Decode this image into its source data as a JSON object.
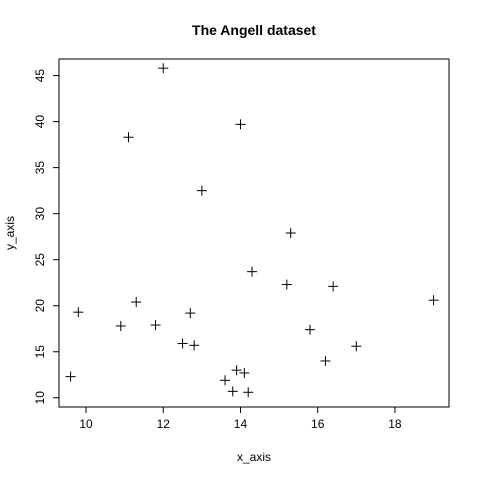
{
  "chart_data": {
    "type": "scatter",
    "title": "The Angell dataset",
    "xlabel": "x_axis",
    "ylabel": "y_axis",
    "xlim": [
      9.3,
      19.4
    ],
    "ylim": [
      9.0,
      46.8
    ],
    "xticks": [
      10,
      12,
      14,
      16,
      18
    ],
    "yticks": [
      10,
      15,
      20,
      25,
      30,
      35,
      40,
      45
    ],
    "point_marker": "plus",
    "grid": false,
    "points": [
      {
        "x": 9.6,
        "y": 12.3
      },
      {
        "x": 9.8,
        "y": 19.3
      },
      {
        "x": 10.9,
        "y": 17.8
      },
      {
        "x": 11.1,
        "y": 38.3
      },
      {
        "x": 11.3,
        "y": 20.4
      },
      {
        "x": 11.8,
        "y": 17.9
      },
      {
        "x": 12.0,
        "y": 45.8
      },
      {
        "x": 12.5,
        "y": 15.9
      },
      {
        "x": 12.7,
        "y": 19.2
      },
      {
        "x": 12.8,
        "y": 15.7
      },
      {
        "x": 13.0,
        "y": 32.5
      },
      {
        "x": 13.6,
        "y": 11.9
      },
      {
        "x": 13.8,
        "y": 10.7
      },
      {
        "x": 13.9,
        "y": 13.0
      },
      {
        "x": 14.0,
        "y": 39.7
      },
      {
        "x": 14.1,
        "y": 12.7
      },
      {
        "x": 14.2,
        "y": 10.6
      },
      {
        "x": 14.3,
        "y": 23.7
      },
      {
        "x": 15.2,
        "y": 22.3
      },
      {
        "x": 15.3,
        "y": 27.9
      },
      {
        "x": 15.8,
        "y": 17.4
      },
      {
        "x": 16.2,
        "y": 14.0
      },
      {
        "x": 16.4,
        "y": 22.1
      },
      {
        "x": 17.0,
        "y": 15.6
      },
      {
        "x": 19.0,
        "y": 20.6
      }
    ]
  }
}
